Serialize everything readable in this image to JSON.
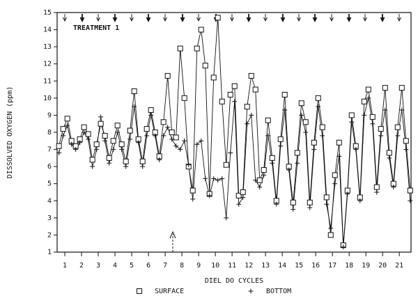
{
  "chart_data": {
    "type": "line",
    "annotation": "TREATMENT 1",
    "x_label": "DIEL DO CYCLES",
    "y_label": "DISSOLVED OXYGEN (ppm)",
    "xlim": [
      0.54,
      21.7
    ],
    "xticks": [
      1,
      2,
      3,
      4,
      5,
      6,
      7,
      8,
      9,
      10,
      11,
      12,
      13,
      14,
      15,
      16,
      17,
      18,
      19,
      20,
      21
    ],
    "ylim": [
      1,
      15
    ],
    "yticks": [
      1,
      2,
      3,
      4,
      5,
      6,
      7,
      8,
      9,
      10,
      11,
      12,
      13,
      14,
      15
    ],
    "grid": false,
    "legend": "bottom",
    "x": [
      0.65,
      0.9,
      1.15,
      1.4,
      1.65,
      1.9,
      2.15,
      2.4,
      2.65,
      2.9,
      3.15,
      3.4,
      3.65,
      3.9,
      4.15,
      4.4,
      4.65,
      4.9,
      5.15,
      5.4,
      5.65,
      5.9,
      6.15,
      6.4,
      6.65,
      6.9,
      7.15,
      7.4,
      7.65,
      7.9,
      8.15,
      8.4,
      8.65,
      8.9,
      9.15,
      9.4,
      9.65,
      9.9,
      10.15,
      10.4,
      10.65,
      10.9,
      11.15,
      11.4,
      11.65,
      11.9,
      12.15,
      12.4,
      12.65,
      12.9,
      13.15,
      13.4,
      13.65,
      13.9,
      14.15,
      14.4,
      14.65,
      14.9,
      15.15,
      15.4,
      15.65,
      15.9,
      16.15,
      16.4,
      16.65,
      16.9,
      17.15,
      17.4,
      17.65,
      17.9,
      18.15,
      18.4,
      18.65,
      18.9,
      19.15,
      19.4,
      19.65,
      19.9,
      20.15,
      20.4,
      20.65,
      20.9,
      21.15,
      21.4,
      21.65
    ],
    "series": [
      {
        "name": "SURFACE",
        "marker": "square",
        "color": "#111111",
        "values": [
          7.2,
          8.2,
          8.8,
          7.5,
          7.2,
          7.6,
          8.3,
          7.9,
          6.4,
          7.3,
          8.5,
          7.8,
          6.5,
          7.5,
          8.4,
          7.3,
          6.3,
          8.1,
          10.4,
          7.6,
          6.3,
          8.2,
          9.3,
          8.0,
          6.6,
          8.6,
          11.3,
          8.0,
          7.7,
          12.9,
          10.0,
          6.0,
          4.6,
          12.9,
          14.0,
          11.9,
          4.4,
          11.2,
          14.7,
          9.8,
          6.1,
          10.2,
          10.7,
          4.3,
          4.5,
          9.5,
          11.3,
          10.5,
          5.2,
          5.8,
          8.7,
          6.5,
          4.0,
          7.6,
          10.2,
          6.0,
          3.9,
          6.8,
          9.7,
          8.6,
          3.9,
          7.4,
          10.0,
          8.3,
          4.2,
          2.0,
          5.5,
          7.4,
          1.4,
          4.6,
          9.0,
          7.2,
          4.2,
          9.8,
          10.5,
          8.9,
          4.8,
          8.2,
          10.6,
          6.8,
          5.0,
          8.3,
          10.6,
          7.5,
          4.6
        ]
      },
      {
        "name": "BOTTOM",
        "marker": "plus",
        "color": "#111111",
        "values": [
          6.8,
          7.8,
          8.4,
          7.3,
          7.0,
          7.4,
          8.0,
          7.6,
          6.0,
          7.0,
          8.9,
          7.5,
          6.2,
          7.0,
          8.0,
          7.0,
          6.0,
          7.6,
          9.5,
          7.4,
          6.0,
          7.8,
          9.0,
          7.8,
          6.4,
          7.8,
          8.3,
          7.6,
          7.2,
          7.0,
          7.5,
          6.1,
          4.1,
          7.3,
          7.5,
          5.3,
          4.3,
          5.3,
          5.2,
          5.3,
          3.0,
          6.8,
          9.8,
          3.8,
          4.2,
          8.5,
          9.0,
          5.2,
          4.8,
          5.5,
          7.8,
          6.2,
          3.8,
          7.2,
          9.3,
          5.8,
          3.5,
          6.2,
          9.0,
          8.0,
          3.6,
          7.0,
          9.5,
          7.8,
          3.8,
          2.4,
          5.0,
          6.6,
          1.3,
          4.4,
          8.6,
          7.0,
          4.0,
          9.0,
          10.0,
          8.5,
          4.5,
          7.8,
          9.3,
          6.5,
          4.8,
          7.8,
          9.3,
          7.0,
          4.0
        ]
      }
    ]
  }
}
